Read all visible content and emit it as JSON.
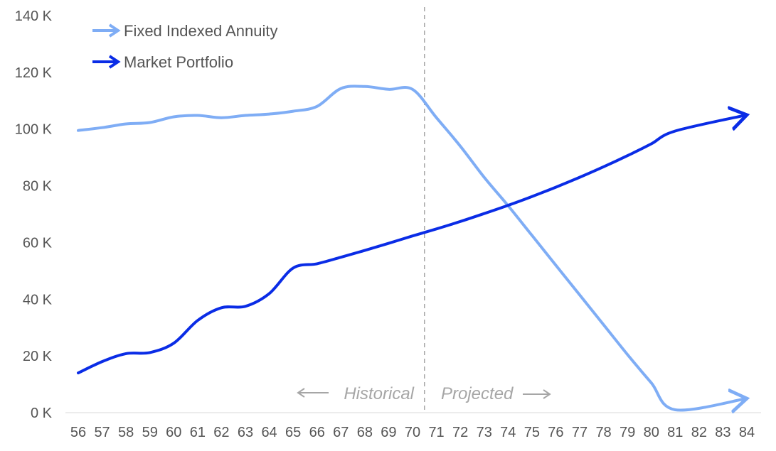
{
  "chart_data": {
    "type": "line",
    "x": [
      56,
      57,
      58,
      59,
      60,
      61,
      62,
      63,
      64,
      65,
      66,
      67,
      68,
      69,
      70,
      71,
      72,
      73,
      74,
      75,
      76,
      77,
      78,
      79,
      80,
      81,
      82,
      83,
      84
    ],
    "xlabel": "",
    "ylabel": "",
    "ylim": [
      0,
      140000
    ],
    "y_ticks": [
      "0 K",
      "20 K",
      "40 K",
      "60 K",
      "80 K",
      "100 K",
      "120 K",
      "140 K"
    ],
    "x_ticks": [
      "56",
      "57",
      "58",
      "59",
      "60",
      "61",
      "62",
      "63",
      "64",
      "65",
      "66",
      "67",
      "68",
      "69",
      "70",
      "71",
      "72",
      "73",
      "74",
      "75",
      "76",
      "77",
      "78",
      "79",
      "80",
      "81",
      "82",
      "83",
      "84"
    ],
    "grid": false,
    "legend_position": "top-left",
    "divider_x": 70.5,
    "annotations": {
      "historical": "Historical",
      "projected": "Projected"
    },
    "series": [
      {
        "name": "Fixed Indexed Annuity",
        "color": "#7fadf5",
        "values": [
          99500,
          100500,
          101800,
          102300,
          104300,
          104800,
          104000,
          104800,
          105300,
          106300,
          108000,
          114300,
          115000,
          114000,
          114000,
          104000,
          94000,
          83000,
          73000,
          62500,
          52000,
          41500,
          31000,
          20500,
          10500,
          1000,
          null,
          null,
          null
        ],
        "end_value": 5000,
        "end_x": 84
      },
      {
        "name": "Market Portfolio",
        "color": "#0a2ce6",
        "values": [
          14000,
          18000,
          20800,
          21200,
          24500,
          32500,
          37000,
          37500,
          42000,
          51000,
          52500,
          54800,
          57200,
          59700,
          62300,
          64800,
          67400,
          70200,
          73100,
          76200,
          79500,
          83000,
          86700,
          90600,
          94800,
          99300,
          null,
          null,
          null
        ],
        "end_value": 105000,
        "end_x": 84
      }
    ]
  }
}
